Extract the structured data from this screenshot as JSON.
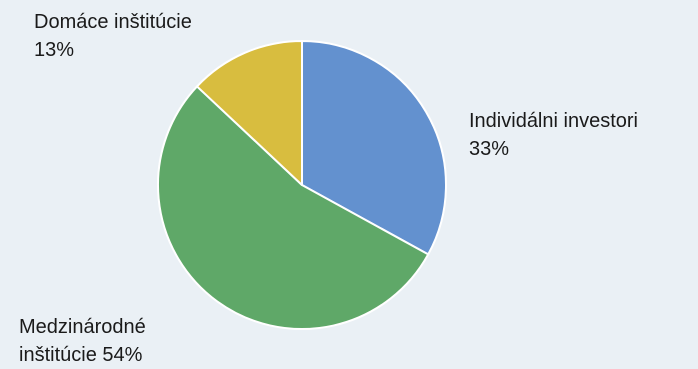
{
  "chart_data": {
    "type": "pie",
    "title": "",
    "slices": [
      {
        "label": "Individálni investori",
        "value": 33,
        "value_text": "33%",
        "color": "#6391cf"
      },
      {
        "label": "Medzinárodné inštitúcie",
        "value": 54,
        "value_text": "54%",
        "color": "#5fa868"
      },
      {
        "label": "Domáce inštitúcie",
        "value": 13,
        "value_text": "13%",
        "color": "#d8bd3f"
      }
    ],
    "start_angle": "12 o'clock",
    "direction": "clockwise",
    "legend": "none",
    "labels": [
      {
        "lines": [
          "Individálni investori",
          "33%"
        ]
      },
      {
        "lines": [
          "Medzinárodné",
          "inštitúcie 54%"
        ]
      },
      {
        "lines": [
          "Domáce inštitúcie",
          "13%"
        ]
      }
    ]
  }
}
